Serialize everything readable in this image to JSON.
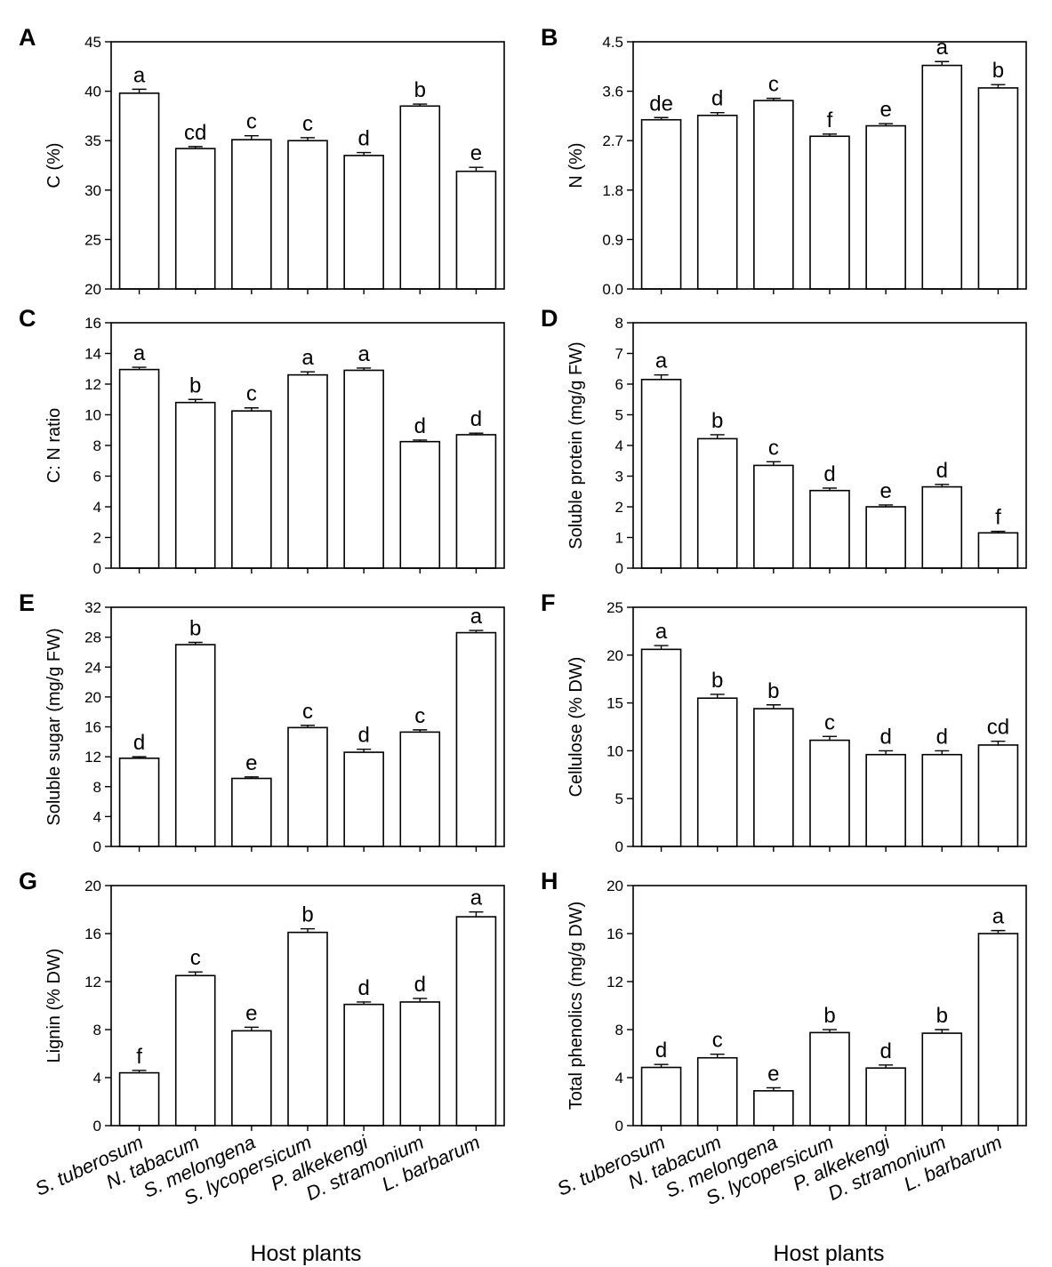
{
  "categories": [
    "S. tuberosum",
    "N. tabacum",
    "S. melongena",
    "S. lycopersicum",
    "P. alkekengi",
    "D. stramonium",
    "L. barbarum"
  ],
  "xlabel": "Host plants",
  "chart_data": [
    {
      "type": "bar",
      "panel": "A",
      "ylabel": "C (%)",
      "ylim": [
        20,
        45
      ],
      "yticks": [
        "20",
        "25",
        "30",
        "35",
        "40",
        "45"
      ],
      "values": [
        39.8,
        34.2,
        35.1,
        35.0,
        33.5,
        38.5,
        31.9
      ],
      "errors": [
        0.4,
        0.2,
        0.4,
        0.3,
        0.3,
        0.2,
        0.4
      ],
      "letters": [
        "a",
        "cd",
        "c",
        "c",
        "d",
        "b",
        "e"
      ]
    },
    {
      "type": "bar",
      "panel": "B",
      "ylabel": "N (%)",
      "ylim": [
        0,
        4.5
      ],
      "yticks": [
        "0.0",
        "0.9",
        "1.8",
        "2.7",
        "3.6",
        "4.5"
      ],
      "values": [
        3.08,
        3.16,
        3.43,
        2.78,
        2.97,
        4.07,
        3.66
      ],
      "errors": [
        0.04,
        0.05,
        0.04,
        0.04,
        0.04,
        0.07,
        0.06
      ],
      "letters": [
        "de",
        "d",
        "c",
        "f",
        "e",
        "a",
        "b"
      ]
    },
    {
      "type": "bar",
      "panel": "C",
      "ylabel": "C: N ratio",
      "ylim": [
        0,
        16
      ],
      "yticks": [
        "0",
        "2",
        "4",
        "6",
        "8",
        "10",
        "12",
        "14",
        "16"
      ],
      "values": [
        12.95,
        10.8,
        10.25,
        12.6,
        12.9,
        8.25,
        8.7
      ],
      "errors": [
        0.15,
        0.2,
        0.2,
        0.2,
        0.15,
        0.1,
        0.1
      ],
      "letters": [
        "a",
        "b",
        "c",
        "a",
        "a",
        "d",
        "d"
      ]
    },
    {
      "type": "bar",
      "panel": "D",
      "ylabel": "Soluble protein (mg/g FW)",
      "ylim": [
        0,
        8
      ],
      "yticks": [
        "0",
        "1",
        "2",
        "3",
        "4",
        "5",
        "6",
        "7",
        "8"
      ],
      "values": [
        6.15,
        4.22,
        3.35,
        2.53,
        2.0,
        2.65,
        1.15
      ],
      "errors": [
        0.15,
        0.13,
        0.12,
        0.08,
        0.06,
        0.08,
        0.05
      ],
      "letters": [
        "a",
        "b",
        "c",
        "d",
        "e",
        "d",
        "f"
      ]
    },
    {
      "type": "bar",
      "panel": "E",
      "ylabel": "Soluble sugar (mg/g FW)",
      "ylim": [
        0,
        32
      ],
      "yticks": [
        "0",
        "4",
        "8",
        "12",
        "16",
        "20",
        "24",
        "28",
        "32"
      ],
      "values": [
        11.8,
        27.0,
        9.1,
        15.9,
        12.6,
        15.3,
        28.6
      ],
      "errors": [
        0.2,
        0.3,
        0.2,
        0.3,
        0.4,
        0.3,
        0.3
      ],
      "letters": [
        "d",
        "b",
        "e",
        "c",
        "d",
        "c",
        "a"
      ]
    },
    {
      "type": "bar",
      "panel": "F",
      "ylabel": "Cellulose (% DW)",
      "ylim": [
        0,
        25
      ],
      "yticks": [
        "0",
        "5",
        "10",
        "15",
        "20",
        "25"
      ],
      "values": [
        20.6,
        15.5,
        14.4,
        11.1,
        9.6,
        9.6,
        10.6
      ],
      "errors": [
        0.4,
        0.4,
        0.4,
        0.4,
        0.4,
        0.4,
        0.4
      ],
      "letters": [
        "a",
        "b",
        "b",
        "c",
        "d",
        "d",
        "cd"
      ]
    },
    {
      "type": "bar",
      "panel": "G",
      "ylabel": "Lignin (% DW)",
      "ylim": [
        0,
        20
      ],
      "yticks": [
        "0",
        "4",
        "8",
        "12",
        "16",
        "20"
      ],
      "values": [
        4.4,
        12.5,
        7.9,
        16.1,
        10.1,
        10.3,
        17.4
      ],
      "errors": [
        0.2,
        0.3,
        0.3,
        0.3,
        0.2,
        0.3,
        0.4
      ],
      "letters": [
        "f",
        "c",
        "e",
        "b",
        "d",
        "d",
        "a"
      ]
    },
    {
      "type": "bar",
      "panel": "H",
      "ylabel": "Total phenolics (mg/g DW)",
      "ylim": [
        0,
        20
      ],
      "yticks": [
        "0",
        "4",
        "8",
        "12",
        "16",
        "20"
      ],
      "values": [
        4.85,
        5.65,
        2.9,
        7.75,
        4.8,
        7.7,
        16.0
      ],
      "errors": [
        0.25,
        0.3,
        0.25,
        0.25,
        0.25,
        0.3,
        0.25
      ],
      "letters": [
        "d",
        "c",
        "e",
        "b",
        "d",
        "b",
        "a"
      ]
    }
  ]
}
